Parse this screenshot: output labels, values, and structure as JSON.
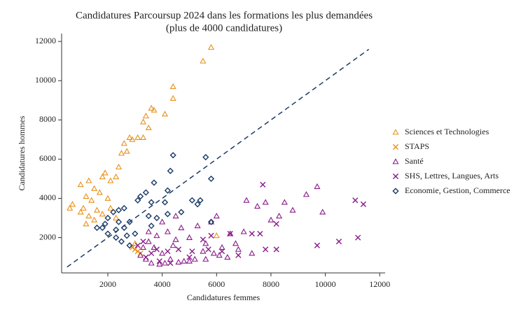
{
  "chart_data": {
    "type": "scatter",
    "title": "Candidatures Parcoursup 2024 dans les formations les plus demandées",
    "subtitle": "(plus de 4000 candidatures)",
    "x_label": "Candidatures femmes",
    "y_label": "Candidatures hommes",
    "xlim": [
      300,
      12200
    ],
    "ylim": [
      200,
      12400
    ],
    "xticks": [
      2000,
      4000,
      6000,
      8000,
      10000,
      12000
    ],
    "yticks": [
      2000,
      4000,
      6000,
      8000,
      10000,
      12000
    ],
    "grid": false,
    "legend_position": "right",
    "reference_line": {
      "color": "#1a3a66",
      "x": [
        500,
        11600
      ],
      "values": [
        500,
        11600
      ]
    },
    "series": [
      {
        "name": "Sciences et Technologies",
        "color": "#e8901a",
        "marker": "triangle",
        "x": [
          5800,
          5500,
          4400,
          4400,
          3600,
          3700,
          3400,
          4100,
          3300,
          3500,
          2800,
          2900,
          3100,
          3300,
          2600,
          2700,
          2500,
          2400,
          2300,
          1900,
          1800,
          2100,
          1300,
          1000,
          1500,
          1700,
          1200,
          2000,
          1400,
          700,
          600,
          1100,
          1600,
          1000,
          1300,
          1800,
          1500,
          1200,
          2100,
          2300,
          6000,
          3000
        ],
        "values": [
          11700,
          11000,
          9700,
          9100,
          8600,
          8500,
          8200,
          8300,
          7900,
          7600,
          7100,
          7000,
          7100,
          7100,
          6800,
          6400,
          6300,
          5600,
          5100,
          5300,
          5100,
          4900,
          4900,
          4700,
          4500,
          4300,
          4100,
          4000,
          3900,
          3700,
          3500,
          3500,
          3400,
          3300,
          3100,
          3200,
          2900,
          2700,
          3500,
          3000,
          2100,
          1700
        ]
      },
      {
        "name": "STAPS",
        "color": "#e8901a",
        "marker": "x",
        "x": [
          3000,
          3100,
          2900,
          3200
        ],
        "values": [
          1400,
          1300,
          1500,
          1200
        ]
      },
      {
        "name": "Santé",
        "color": "#8a1a8a",
        "marker": "triangle",
        "x": [
          9700,
          9300,
          9900,
          8500,
          8800,
          7800,
          7100,
          7500,
          8300,
          8000,
          6000,
          5800,
          5300,
          4700,
          4200,
          3800,
          3500,
          4500,
          5000,
          5600,
          6200,
          6800,
          7300,
          4000,
          4300,
          4800,
          5200,
          5600,
          6100,
          3600,
          3900,
          4100,
          4600,
          5000,
          3400,
          3200,
          3700,
          4400,
          5500,
          6500,
          7000,
          6700,
          3500,
          4000,
          4500,
          3300,
          5900,
          6400
        ],
        "values": [
          4600,
          4200,
          3300,
          3800,
          3400,
          3800,
          3900,
          3600,
          3100,
          2900,
          3100,
          2800,
          2600,
          2500,
          2300,
          2100,
          1800,
          1900,
          2000,
          1700,
          1500,
          1400,
          1200,
          1200,
          900,
          800,
          900,
          900,
          1100,
          700,
          650,
          700,
          750,
          800,
          900,
          1100,
          1500,
          1600,
          1300,
          2200,
          2300,
          1700,
          2300,
          2800,
          3100,
          1500,
          1200,
          1000
        ]
      },
      {
        "name": "SHS, Lettres, Langues, Arts",
        "color": "#8a1a8a",
        "marker": "x",
        "x": [
          7700,
          11100,
          11400,
          10500,
          11200,
          9700,
          8200,
          7600,
          8200,
          7800,
          7300,
          6800,
          6500,
          5800,
          5500,
          5100,
          4600,
          4200,
          3800,
          3600,
          3400,
          3900,
          4300,
          5000,
          5700,
          6200,
          3100,
          3300
        ],
        "values": [
          4700,
          3900,
          3700,
          1800,
          2000,
          1600,
          2700,
          2200,
          1400,
          1400,
          2200,
          1100,
          2200,
          2100,
          1900,
          1300,
          1400,
          1300,
          1400,
          1200,
          1000,
          800,
          700,
          1000,
          1400,
          1300,
          1600,
          1800
        ]
      },
      {
        "name": "Economie, Gestion, Commerce",
        "color": "#1a3a66",
        "marker": "diamond",
        "x": [
          4400,
          5600,
          5800,
          4300,
          3700,
          4200,
          3400,
          3200,
          3100,
          3600,
          4100,
          5100,
          5400,
          5300,
          4700,
          4200,
          3800,
          3500,
          2600,
          2400,
          2200,
          2000,
          1900,
          2400,
          2800,
          2600,
          2300,
          1800,
          1600,
          2000,
          2300,
          2700,
          3000,
          2500,
          3600,
          5800,
          2800
        ],
        "values": [
          6200,
          6100,
          5000,
          5400,
          4800,
          4400,
          4300,
          4100,
          3900,
          3800,
          3800,
          3900,
          3900,
          3700,
          3300,
          3200,
          3000,
          3100,
          3500,
          3400,
          3300,
          3000,
          2700,
          2800,
          2800,
          2500,
          2400,
          2500,
          2500,
          2200,
          2000,
          2100,
          2200,
          1800,
          2600,
          2800,
          1600
        ]
      }
    ]
  }
}
